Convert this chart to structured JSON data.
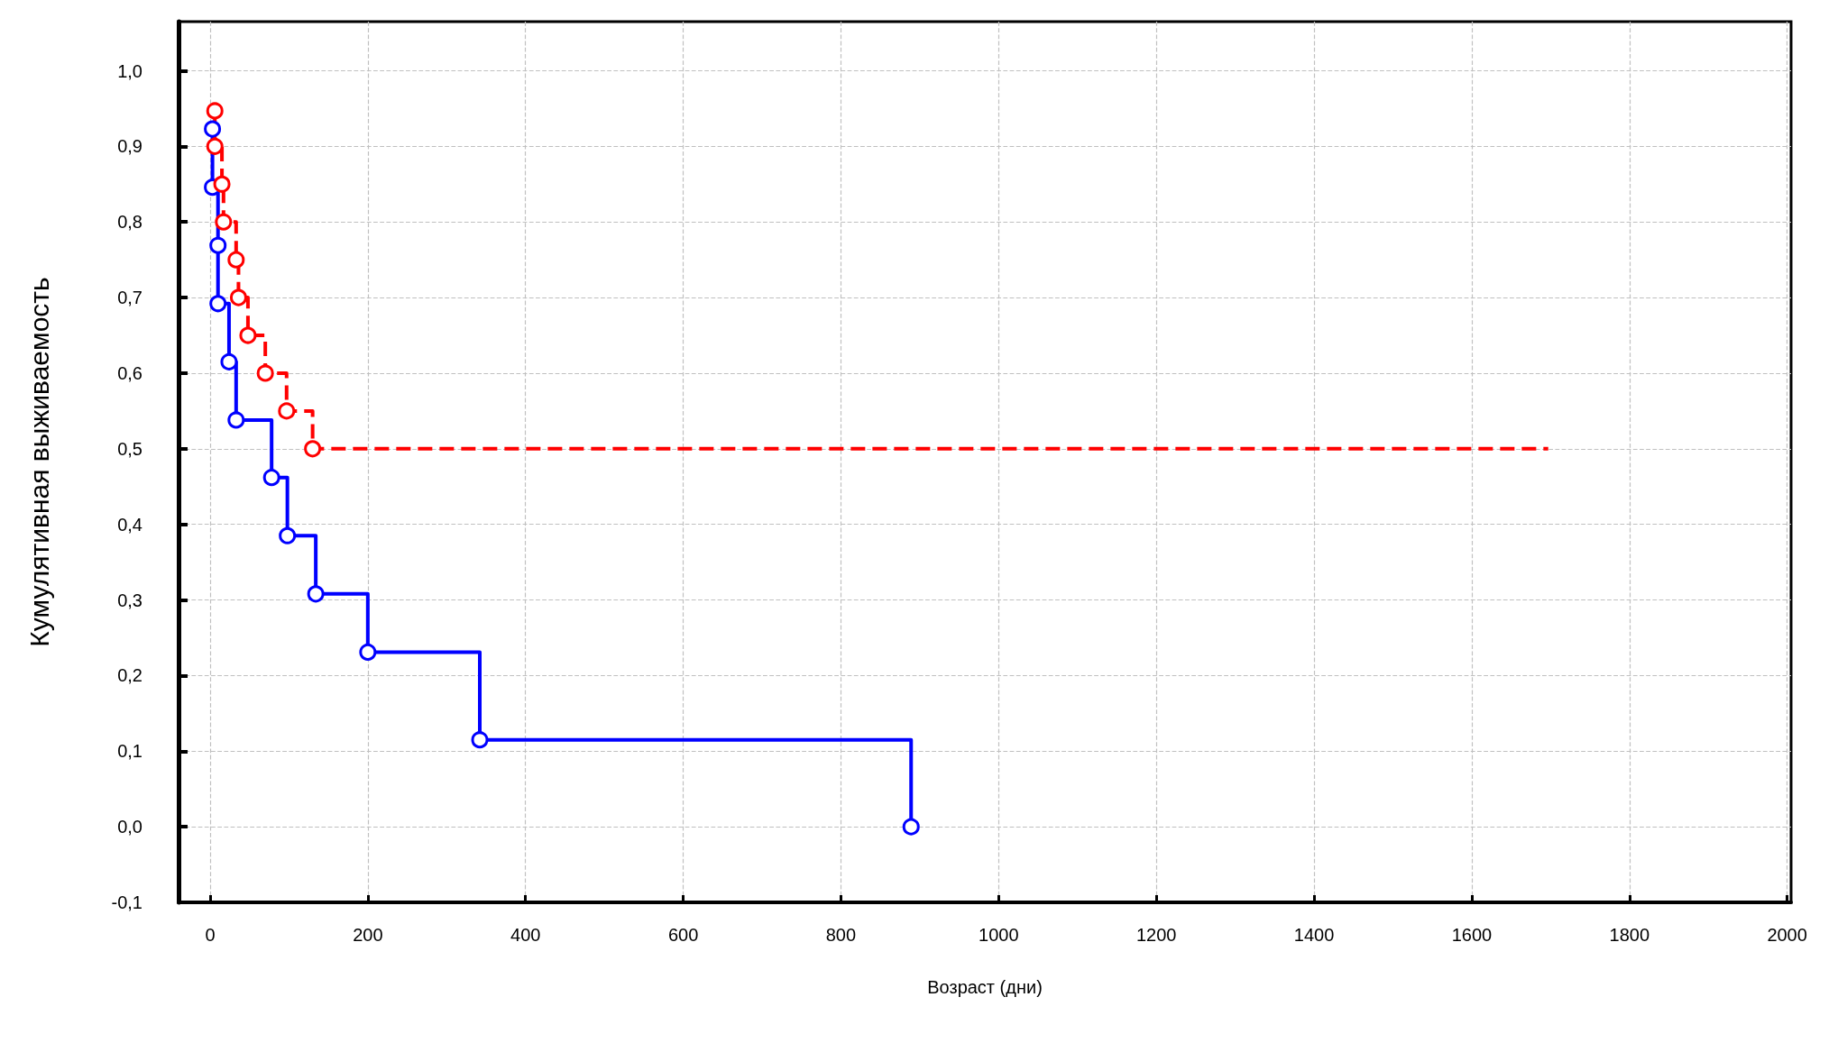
{
  "chart_data": {
    "type": "step",
    "xlabel": "Возраст (дни)",
    "ylabel": "Кумулятивная выживаемость",
    "xlim": [
      -40,
      2005
    ],
    "xticks": [
      0,
      200,
      400,
      600,
      800,
      1000,
      1200,
      1400,
      1600,
      1800,
      2000
    ],
    "ylim": [
      -0.1,
      1.065
    ],
    "yticks": [
      {
        "value": -0.1,
        "label": "-0,1"
      },
      {
        "value": 0,
        "label": "0,0"
      },
      {
        "value": 0.1,
        "label": "0,1"
      },
      {
        "value": 0.2,
        "label": "0,2"
      },
      {
        "value": 0.3,
        "label": "0,3"
      },
      {
        "value": 0.4,
        "label": "0,4"
      },
      {
        "value": 0.5,
        "label": "0,5"
      },
      {
        "value": 0.6,
        "label": "0,6"
      },
      {
        "value": 0.7,
        "label": "0,7"
      },
      {
        "value": 0.8,
        "label": "0,8"
      },
      {
        "value": 0.9,
        "label": "0,9"
      },
      {
        "value": 1.0,
        "label": "1,0"
      }
    ],
    "grid": true,
    "marker": "circle",
    "series": [
      {
        "color": "#0000ff",
        "line_style": "solid",
        "x": [
          3,
          3,
          10,
          10,
          24,
          33,
          78,
          98,
          134,
          200,
          324,
          342,
          889
        ],
        "values": [
          0.923,
          0.846,
          0.769,
          0.692,
          0.615,
          0.538,
          0.462,
          0.385,
          0.308,
          0.231,
          0.231,
          0.115,
          0.0
        ]
      },
      {
        "color": "#ff0000",
        "line_style": "dashed",
        "x": [
          6,
          6,
          15,
          17,
          33,
          36,
          48,
          70,
          97,
          130,
          1697
        ],
        "values": [
          0.947,
          0.9,
          0.85,
          0.8,
          0.75,
          0.7,
          0.65,
          0.6,
          0.55,
          0.5,
          0.5
        ]
      }
    ]
  }
}
